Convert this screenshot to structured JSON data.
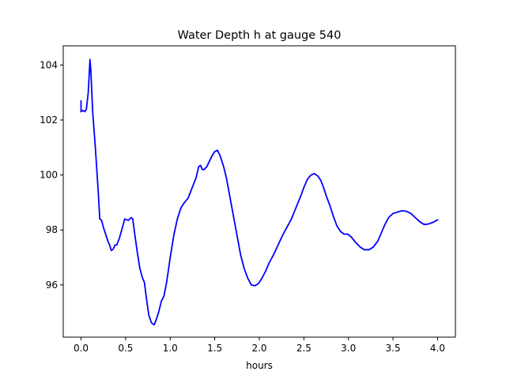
{
  "chart_data": {
    "type": "line",
    "title": "Water Depth h at gauge 540",
    "xlabel": "hours",
    "ylabel": "",
    "xlim": [
      -0.2,
      4.2
    ],
    "ylim": [
      94.1,
      104.7
    ],
    "grid": false,
    "x_ticks": [
      0.0,
      0.5,
      1.0,
      1.5,
      2.0,
      2.5,
      3.0,
      3.5,
      4.0
    ],
    "x_tick_labels": [
      "0.0",
      "0.5",
      "1.0",
      "1.5",
      "2.0",
      "2.5",
      "3.0",
      "3.5",
      "4.0"
    ],
    "y_ticks": [
      96,
      98,
      100,
      102,
      104
    ],
    "y_tick_labels": [
      "96",
      "98",
      "100",
      "102",
      "104"
    ],
    "colors": {
      "line": "#0000ff",
      "axes": "#000000",
      "background": "#ffffff"
    },
    "series": [
      {
        "color": "#0000ff",
        "points": [
          [
            0.0,
            102.7
          ],
          [
            0.0,
            102.3
          ],
          [
            0.02,
            102.35
          ],
          [
            0.04,
            102.3
          ],
          [
            0.06,
            102.4
          ],
          [
            0.08,
            103.0
          ],
          [
            0.1,
            104.2
          ],
          [
            0.11,
            103.8
          ],
          [
            0.13,
            102.3
          ],
          [
            0.16,
            101.0
          ],
          [
            0.19,
            99.5
          ],
          [
            0.21,
            98.4
          ],
          [
            0.23,
            98.35
          ],
          [
            0.25,
            98.1
          ],
          [
            0.27,
            97.9
          ],
          [
            0.3,
            97.6
          ],
          [
            0.32,
            97.45
          ],
          [
            0.34,
            97.25
          ],
          [
            0.36,
            97.3
          ],
          [
            0.38,
            97.45
          ],
          [
            0.4,
            97.45
          ],
          [
            0.43,
            97.7
          ],
          [
            0.46,
            98.05
          ],
          [
            0.49,
            98.4
          ],
          [
            0.53,
            98.35
          ],
          [
            0.56,
            98.45
          ],
          [
            0.58,
            98.4
          ],
          [
            0.6,
            97.9
          ],
          [
            0.63,
            97.2
          ],
          [
            0.66,
            96.6
          ],
          [
            0.69,
            96.25
          ],
          [
            0.71,
            96.1
          ],
          [
            0.73,
            95.6
          ],
          [
            0.76,
            94.9
          ],
          [
            0.79,
            94.62
          ],
          [
            0.82,
            94.55
          ],
          [
            0.84,
            94.7
          ],
          [
            0.87,
            95.0
          ],
          [
            0.9,
            95.4
          ],
          [
            0.93,
            95.6
          ],
          [
            0.96,
            96.1
          ],
          [
            1.0,
            97.0
          ],
          [
            1.04,
            97.8
          ],
          [
            1.08,
            98.4
          ],
          [
            1.12,
            98.8
          ],
          [
            1.16,
            99.0
          ],
          [
            1.2,
            99.15
          ],
          [
            1.23,
            99.4
          ],
          [
            1.26,
            99.65
          ],
          [
            1.29,
            99.9
          ],
          [
            1.32,
            100.3
          ],
          [
            1.34,
            100.35
          ],
          [
            1.36,
            100.2
          ],
          [
            1.38,
            100.2
          ],
          [
            1.41,
            100.3
          ],
          [
            1.44,
            100.5
          ],
          [
            1.47,
            100.7
          ],
          [
            1.5,
            100.85
          ],
          [
            1.53,
            100.9
          ],
          [
            1.56,
            100.7
          ],
          [
            1.6,
            100.3
          ],
          [
            1.63,
            99.9
          ],
          [
            1.67,
            99.2
          ],
          [
            1.71,
            98.5
          ],
          [
            1.75,
            97.8
          ],
          [
            1.79,
            97.1
          ],
          [
            1.83,
            96.6
          ],
          [
            1.87,
            96.25
          ],
          [
            1.91,
            96.0
          ],
          [
            1.95,
            95.97
          ],
          [
            1.99,
            96.05
          ],
          [
            2.03,
            96.25
          ],
          [
            2.07,
            96.5
          ],
          [
            2.11,
            96.8
          ],
          [
            2.16,
            97.1
          ],
          [
            2.21,
            97.45
          ],
          [
            2.26,
            97.8
          ],
          [
            2.31,
            98.1
          ],
          [
            2.36,
            98.4
          ],
          [
            2.41,
            98.8
          ],
          [
            2.46,
            99.2
          ],
          [
            2.5,
            99.55
          ],
          [
            2.54,
            99.85
          ],
          [
            2.58,
            100.0
          ],
          [
            2.62,
            100.05
          ],
          [
            2.66,
            99.95
          ],
          [
            2.69,
            99.8
          ],
          [
            2.72,
            99.55
          ],
          [
            2.75,
            99.25
          ],
          [
            2.79,
            98.9
          ],
          [
            2.83,
            98.5
          ],
          [
            2.87,
            98.15
          ],
          [
            2.91,
            97.95
          ],
          [
            2.95,
            97.85
          ],
          [
            2.99,
            97.85
          ],
          [
            3.03,
            97.75
          ],
          [
            3.08,
            97.55
          ],
          [
            3.13,
            97.38
          ],
          [
            3.18,
            97.28
          ],
          [
            3.23,
            97.28
          ],
          [
            3.28,
            97.38
          ],
          [
            3.33,
            97.6
          ],
          [
            3.37,
            97.9
          ],
          [
            3.41,
            98.2
          ],
          [
            3.45,
            98.45
          ],
          [
            3.5,
            98.6
          ],
          [
            3.55,
            98.65
          ],
          [
            3.6,
            98.7
          ],
          [
            3.65,
            98.68
          ],
          [
            3.7,
            98.6
          ],
          [
            3.75,
            98.45
          ],
          [
            3.8,
            98.3
          ],
          [
            3.85,
            98.2
          ],
          [
            3.9,
            98.22
          ],
          [
            3.95,
            98.28
          ],
          [
            4.0,
            98.37
          ]
        ]
      }
    ]
  }
}
